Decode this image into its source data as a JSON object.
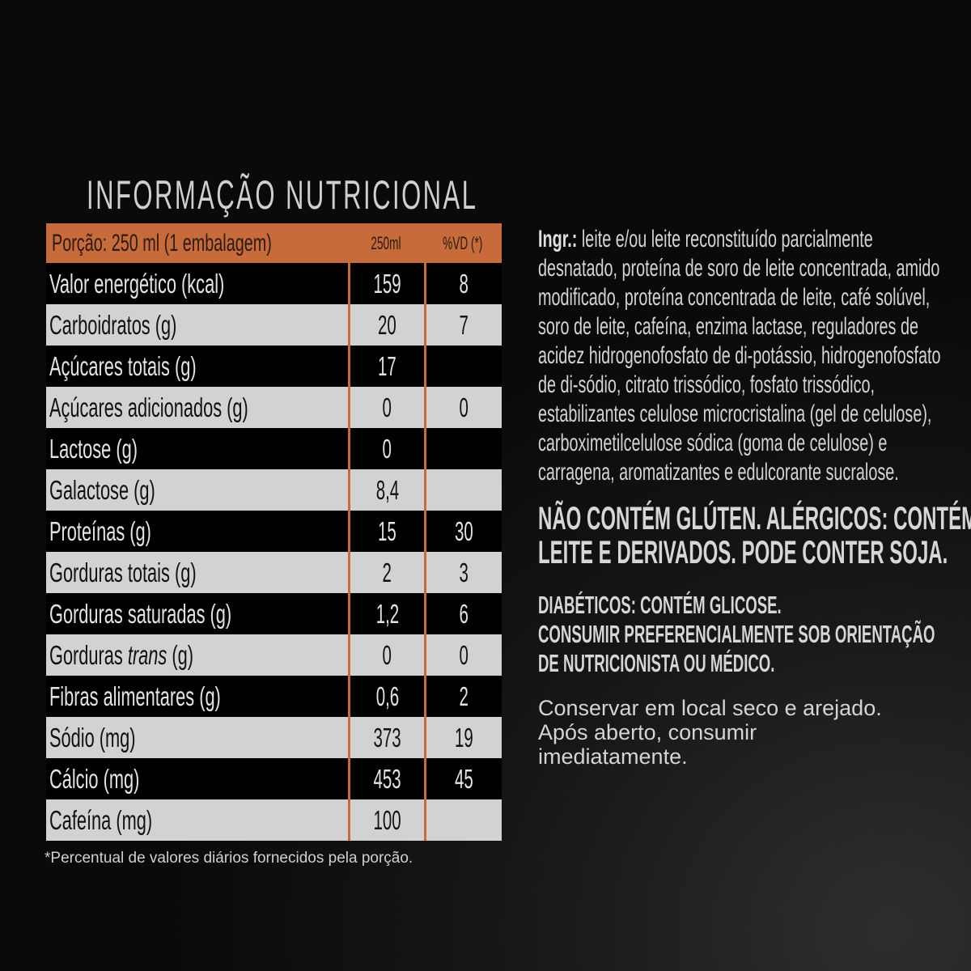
{
  "title": "INFORMAÇÃO NUTRICIONAL",
  "table": {
    "header": {
      "portion": "Porção: 250 ml (1 embalagem)",
      "col_amount": "250ml",
      "col_vd": "%VD (*)"
    },
    "rows": [
      {
        "label": "Valor energético (kcal)",
        "amount": "159",
        "vd": "8"
      },
      {
        "label": "Carboidratos (g)",
        "amount": "20",
        "vd": "7"
      },
      {
        "label": "Açúcares totais (g)",
        "amount": "17",
        "vd": ""
      },
      {
        "label": "Açúcares adicionados (g)",
        "amount": "0",
        "vd": "0"
      },
      {
        "label": "Lactose (g)",
        "amount": "0",
        "vd": ""
      },
      {
        "label": "Galactose (g)",
        "amount": "8,4",
        "vd": ""
      },
      {
        "label": "Proteínas (g)",
        "amount": "15",
        "vd": "30"
      },
      {
        "label": "Gorduras totais (g)",
        "amount": "2",
        "vd": "3"
      },
      {
        "label": "Gorduras saturadas (g)",
        "amount": "1,2",
        "vd": "6"
      },
      {
        "label": "Gorduras trans (g)",
        "amount": "0",
        "vd": "0"
      },
      {
        "label": "Fibras alimentares (g)",
        "amount": "0,6",
        "vd": "2"
      },
      {
        "label": "Sódio (mg)",
        "amount": "373",
        "vd": "19"
      },
      {
        "label": "Cálcio (mg)",
        "amount": "453",
        "vd": "45"
      },
      {
        "label": "Cafeína (mg)",
        "amount": "100",
        "vd": ""
      }
    ],
    "footnote": "*Percentual de valores diários fornecidos pela porção."
  },
  "ingredients": {
    "label": "Ingr.:",
    "lines": [
      " leite e/ou leite reconstituído parcialmente",
      "desnatado, proteína de soro de leite concentrada, amido",
      "modificado, proteína concentrada de leite, café solúvel,",
      "soro de leite, cafeína, enzima lactase, reguladores de",
      "acidez hidrogenofosfato de di-potássio, hidrogenofosfato",
      "de di-sódio, citrato trissódico, fosfato trissódico,",
      "estabilizantes celulose microcristalina (gel de celulose),",
      "carboximetilcelulose sódica (goma de celulose) e",
      "carragena, aromatizantes e edulcorante sucralose."
    ]
  },
  "allergen_warning": [
    "NÃO CONTÉM GLÚTEN. ALÉRGICOS: CONTÉM",
    "LEITE E DERIVADOS. PODE CONTER SOJA."
  ],
  "diabetic_warning": [
    "DIABÉTICOS: CONTÉM GLICOSE.",
    "CONSUMIR PREFERENCIALMENTE SOB ORIENTAÇÃO",
    "DE NUTRICIONISTA OU MÉDICO."
  ],
  "storage": [
    "Conservar em local seco e arejado.",
    "Após aberto, consumir",
    "imediatamente."
  ],
  "colors": {
    "accent": "#c76b3a",
    "row_light": "#d2d2d2",
    "row_dark": "#000000"
  }
}
